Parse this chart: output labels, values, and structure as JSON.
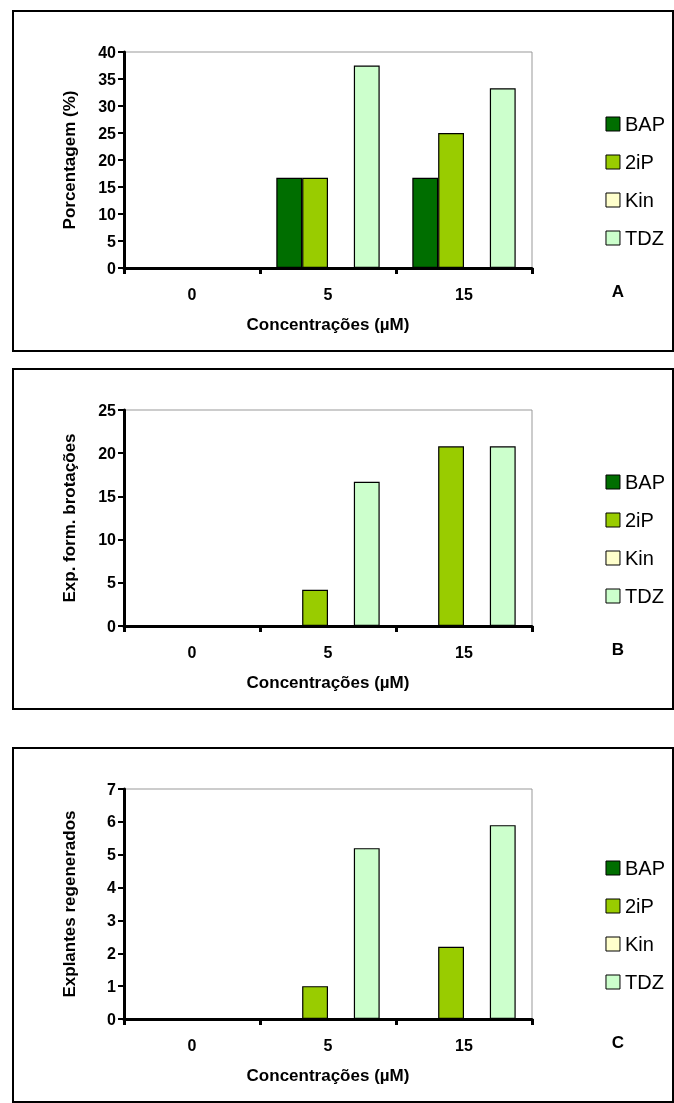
{
  "chart_data": [
    {
      "type": "bar",
      "xlabel": "Concentrações (µM)",
      "ylabel": "Porcentagem (%)",
      "categories": [
        "0",
        "5",
        "15"
      ],
      "series": [
        {
          "name": "BAP",
          "color": "#006e00",
          "values": [
            0,
            16.7,
            16.7
          ]
        },
        {
          "name": "2iP",
          "color": "#99cc00",
          "values": [
            0,
            16.7,
            25
          ]
        },
        {
          "name": "Kin",
          "color": "#ffffcc",
          "values": [
            0,
            0,
            0
          ]
        },
        {
          "name": "TDZ",
          "color": "#ccffcc",
          "values": [
            0,
            37.5,
            33.3
          ]
        }
      ],
      "ylim": [
        0,
        40
      ],
      "yticks": [
        0,
        5,
        10,
        15,
        20,
        25,
        30,
        35,
        40
      ],
      "grid": false,
      "legend": "right",
      "annotations": [
        "A"
      ]
    },
    {
      "type": "bar",
      "xlabel": "Concentrações (µM)",
      "ylabel": "Exp. form. brotações",
      "categories": [
        "0",
        "5",
        "15"
      ],
      "series": [
        {
          "name": "BAP",
          "color": "#006e00",
          "values": [
            0,
            0,
            0
          ]
        },
        {
          "name": "2iP",
          "color": "#99cc00",
          "values": [
            0,
            4.2,
            20.8
          ]
        },
        {
          "name": "Kin",
          "color": "#ffffcc",
          "values": [
            0,
            0,
            0
          ]
        },
        {
          "name": "TDZ",
          "color": "#ccffcc",
          "values": [
            0,
            16.7,
            20.8
          ]
        }
      ],
      "ylim": [
        0,
        25
      ],
      "yticks": [
        0,
        5,
        10,
        15,
        20,
        25
      ],
      "grid": false,
      "legend": "right",
      "annotations": [
        "B"
      ]
    },
    {
      "type": "bar",
      "xlabel": "Concentrações (µM)",
      "ylabel": "Explantes regenerados",
      "categories": [
        "0",
        "5",
        "15"
      ],
      "series": [
        {
          "name": "BAP",
          "color": "#006e00",
          "values": [
            0,
            0,
            0
          ]
        },
        {
          "name": "2iP",
          "color": "#99cc00",
          "values": [
            0,
            1,
            2.2
          ]
        },
        {
          "name": "Kin",
          "color": "#ffffcc",
          "values": [
            0,
            0,
            0
          ]
        },
        {
          "name": "TDZ",
          "color": "#ccffcc",
          "values": [
            0,
            5.2,
            5.9
          ]
        }
      ],
      "ylim": [
        0,
        7
      ],
      "yticks": [
        0,
        1,
        2,
        3,
        4,
        5,
        6,
        7
      ],
      "grid": false,
      "legend": "right",
      "annotations": [
        "C"
      ]
    }
  ]
}
